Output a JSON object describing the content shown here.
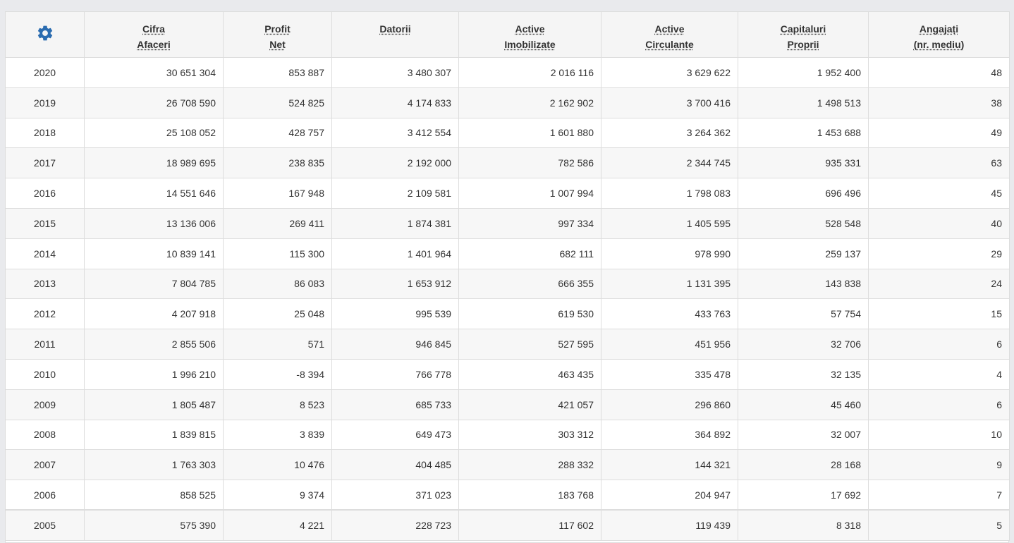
{
  "table": {
    "accent": "#2b6cb0",
    "settings_icon": "gear-icon",
    "headers": [
      {
        "line1": "Cifra",
        "line2": "Afaceri"
      },
      {
        "line1": "Profit",
        "line2": "Net"
      },
      {
        "line1": "Datorii",
        "line2": ""
      },
      {
        "line1": "Active",
        "line2": "Imobilizate"
      },
      {
        "line1": "Active",
        "line2": "Circulante"
      },
      {
        "line1": "Capitaluri",
        "line2": "Proprii"
      },
      {
        "line1": "Angajați",
        "line2": "(nr. mediu)"
      }
    ],
    "rows": [
      [
        "2020",
        "30 651 304",
        "853 887",
        "3 480 307",
        "2 016 116",
        "3 629 622",
        "1 952 400",
        "48"
      ],
      [
        "2019",
        "26 708 590",
        "524 825",
        "4 174 833",
        "2 162 902",
        "3 700 416",
        "1 498 513",
        "38"
      ],
      [
        "2018",
        "25 108 052",
        "428 757",
        "3 412 554",
        "1 601 880",
        "3 264 362",
        "1 453 688",
        "49"
      ],
      [
        "2017",
        "18 989 695",
        "238 835",
        "2 192 000",
        "782 586",
        "2 344 745",
        "935 331",
        "63"
      ],
      [
        "2016",
        "14 551 646",
        "167 948",
        "2 109 581",
        "1 007 994",
        "1 798 083",
        "696 496",
        "45"
      ],
      [
        "2015",
        "13 136 006",
        "269 411",
        "1 874 381",
        "997 334",
        "1 405 595",
        "528 548",
        "40"
      ],
      [
        "2014",
        "10 839 141",
        "115 300",
        "1 401 964",
        "682 111",
        "978 990",
        "259 137",
        "29"
      ],
      [
        "2013",
        "7 804 785",
        "86 083",
        "1 653 912",
        "666 355",
        "1 131 395",
        "143 838",
        "24"
      ],
      [
        "2012",
        "4 207 918",
        "25 048",
        "995 539",
        "619 530",
        "433 763",
        "57 754",
        "15"
      ],
      [
        "2011",
        "2 855 506",
        "571",
        "946 845",
        "527 595",
        "451 956",
        "32 706",
        "6"
      ],
      [
        "2010",
        "1 996 210",
        "-8 394",
        "766 778",
        "463 435",
        "335 478",
        "32 135",
        "4"
      ],
      [
        "2009",
        "1 805 487",
        "8 523",
        "685 733",
        "421 057",
        "296 860",
        "45 460",
        "6"
      ],
      [
        "2008",
        "1 839 815",
        "3 839",
        "649 473",
        "303 312",
        "364 892",
        "32 007",
        "10"
      ],
      [
        "2007",
        "1 763 303",
        "10 476",
        "404 485",
        "288 332",
        "144 321",
        "28 168",
        "9"
      ],
      [
        "2006",
        "858 525",
        "9 374",
        "371 023",
        "183 768",
        "204 947",
        "17 692",
        "7"
      ],
      [
        "2005",
        "575 390",
        "4 221",
        "228 723",
        "117 602",
        "119 439",
        "8 318",
        "5"
      ]
    ]
  }
}
